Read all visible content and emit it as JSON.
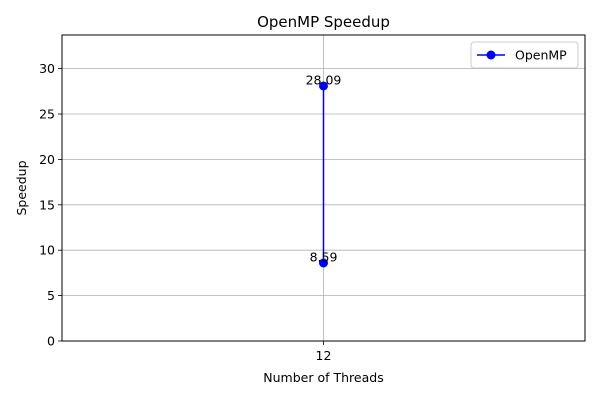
{
  "chart_data": {
    "type": "line",
    "title": "OpenMP Speedup",
    "xlabel": "Number of Threads",
    "ylabel": "Speedup",
    "x_ticks": [
      "12"
    ],
    "y_ticks": [
      0,
      5,
      10,
      15,
      20,
      25,
      30
    ],
    "ylim": [
      0,
      33.7
    ],
    "grid": true,
    "legend_position": "top-right",
    "series": [
      {
        "name": "OpenMP",
        "color": "#0000ff",
        "marker": "circle",
        "points": [
          {
            "x": 12,
            "y": 8.59,
            "label": "8.59"
          },
          {
            "x": 12,
            "y": 28.09,
            "label": "28.09"
          }
        ]
      }
    ]
  }
}
